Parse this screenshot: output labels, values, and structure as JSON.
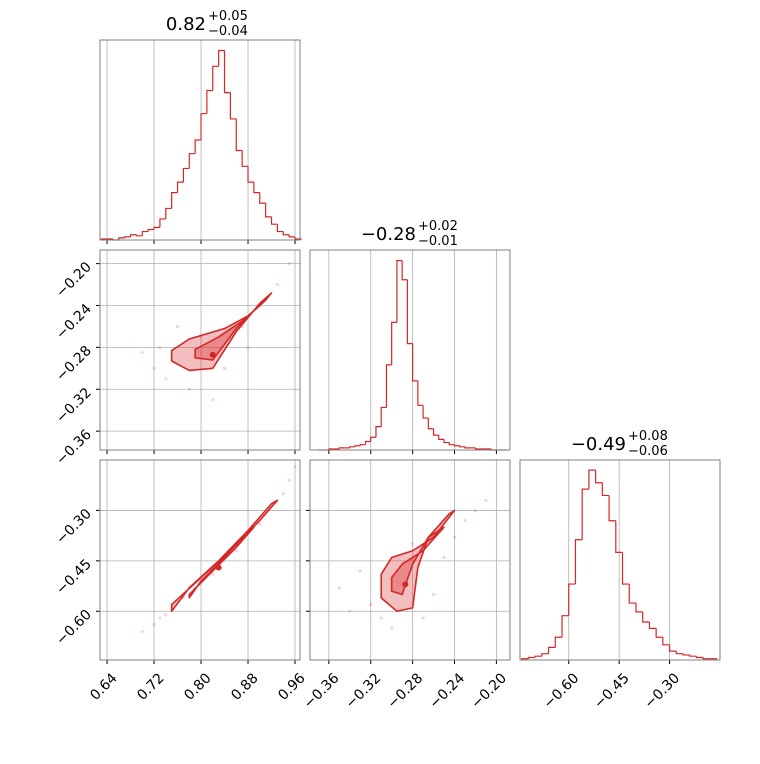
{
  "chart_data": {
    "type": "corner",
    "color": "#d62728",
    "grid": true,
    "params": [
      {
        "title": "0.82",
        "plus": "+0.05",
        "minus": "−0.04",
        "lim": [
          0.628,
          0.9685
        ],
        "ticks": [
          0.64,
          0.72,
          {
            "value": 0.8,
            "label": "0.80"
          },
          0.88,
          0.96
        ],
        "hist": {
          "bins": [
            0.63,
            0.64,
            0.65,
            0.66,
            0.67,
            0.68,
            0.69,
            0.7,
            0.71,
            0.72,
            0.73,
            0.74,
            0.75,
            0.76,
            0.77,
            0.78,
            0.79,
            0.8,
            0.81,
            0.82,
            0.83,
            0.84,
            0.85,
            0.86,
            0.87,
            0.88,
            0.89,
            0.9,
            0.91,
            0.92,
            0.93,
            0.94,
            0.95,
            0.96,
            0.97
          ],
          "values": [
            1,
            1,
            0,
            2,
            3,
            5,
            4,
            8,
            10,
            12,
            20,
            30,
            45,
            55,
            68,
            82,
            95,
            120,
            142,
            165,
            180,
            140,
            115,
            85,
            70,
            55,
            45,
            35,
            22,
            15,
            8,
            5,
            3,
            1
          ],
          "ylim": [
            0,
            190
          ]
        }
      },
      {
        "title": "−0.28",
        "plus": "+0.02",
        "minus": "−0.01",
        "lim": [
          -0.378,
          -0.187
        ],
        "ticks": [
          {
            "value": -0.36,
            "label": "−0.36"
          },
          {
            "value": -0.32,
            "label": "−0.32"
          },
          {
            "value": -0.28,
            "label": "−0.28"
          },
          {
            "value": -0.24,
            "label": "−0.24"
          },
          {
            "value": -0.2,
            "label": "−0.20"
          }
        ],
        "hist": {
          "bins": [
            -0.37,
            -0.365,
            -0.36,
            -0.355,
            -0.35,
            -0.345,
            -0.34,
            -0.335,
            -0.33,
            -0.325,
            -0.32,
            -0.315,
            -0.31,
            -0.305,
            -0.3,
            -0.295,
            -0.29,
            -0.285,
            -0.28,
            -0.275,
            -0.27,
            -0.265,
            -0.26,
            -0.255,
            -0.25,
            -0.245,
            -0.24,
            -0.235,
            -0.23,
            -0.225,
            -0.22,
            -0.215,
            -0.21,
            -0.205,
            -0.2,
            -0.195,
            -0.19
          ],
          "values": [
            0,
            0,
            1,
            1,
            2,
            2,
            3,
            4,
            5,
            8,
            12,
            22,
            40,
            80,
            120,
            178,
            160,
            100,
            65,
            42,
            30,
            20,
            14,
            10,
            7,
            5,
            4,
            3,
            2,
            2,
            1,
            1,
            1,
            0,
            0,
            0
          ],
          "ylim": [
            0,
            188
          ]
        }
      },
      {
        "title": "−0.49",
        "plus": "+0.08",
        "minus": "−0.06",
        "lim": [
          -0.745,
          -0.15
        ],
        "ticks": [
          {
            "value": -0.6,
            "label": "−0.60"
          },
          {
            "value": -0.45,
            "label": "−0.45"
          },
          {
            "value": -0.3,
            "label": "−0.30"
          }
        ],
        "hist": {
          "bins": [
            -0.74,
            -0.72,
            -0.7,
            -0.68,
            -0.66,
            -0.64,
            -0.62,
            -0.6,
            -0.58,
            -0.56,
            -0.54,
            -0.52,
            -0.5,
            -0.48,
            -0.46,
            -0.44,
            -0.42,
            -0.4,
            -0.38,
            -0.36,
            -0.34,
            -0.32,
            -0.3,
            -0.28,
            -0.26,
            -0.24,
            -0.22,
            -0.2,
            -0.18,
            -0.16
          ],
          "values": [
            1,
            2,
            3,
            5,
            10,
            18,
            35,
            60,
            95,
            135,
            150,
            140,
            130,
            110,
            85,
            60,
            45,
            38,
            30,
            25,
            18,
            12,
            7,
            5,
            4,
            3,
            2,
            1,
            1
          ],
          "ylim": [
            0,
            158
          ]
        }
      }
    ],
    "pairs": [
      {
        "points": {
          "x": [
            0.7,
            0.72,
            0.74,
            0.78,
            0.8,
            0.84,
            0.87,
            0.9,
            0.93,
            0.95,
            0.76,
            0.82,
            0.73,
            0.88
          ],
          "y": [
            -0.285,
            -0.3,
            -0.31,
            -0.32,
            -0.27,
            -0.3,
            -0.26,
            -0.24,
            -0.22,
            -0.2,
            -0.26,
            -0.33,
            -0.28,
            -0.28
          ]
        },
        "contours": [
          {
            "x": [
              0.75,
              0.78,
              0.84,
              0.88,
              0.91,
              0.92,
              0.9,
              0.86,
              0.82,
              0.78,
              0.75
            ],
            "y": [
              -0.283,
              -0.272,
              -0.262,
              -0.25,
              -0.235,
              -0.228,
              -0.238,
              -0.265,
              -0.3,
              -0.302,
              -0.293
            ]
          },
          {
            "x": [
              0.79,
              0.83,
              0.87,
              0.89,
              0.86,
              0.82,
              0.79
            ],
            "y": [
              -0.282,
              -0.27,
              -0.255,
              -0.245,
              -0.262,
              -0.292,
              -0.29
            ]
          }
        ],
        "peak": {
          "x": 0.82,
          "y": -0.287
        }
      },
      {
        "points": {
          "x": [
            0.7,
            0.72,
            0.74,
            0.77,
            0.82,
            0.86,
            0.9,
            0.94,
            0.95,
            0.96,
            0.73,
            0.79
          ],
          "y": [
            -0.66,
            -0.64,
            -0.61,
            -0.56,
            -0.49,
            -0.42,
            -0.34,
            -0.25,
            -0.21,
            -0.17,
            -0.62,
            -0.53
          ]
        },
        "contours": [
          {
            "x": [
              0.75,
              0.8,
              0.85,
              0.9,
              0.93,
              0.92,
              0.88,
              0.83,
              0.78,
              0.75
            ],
            "y": [
              -0.58,
              -0.5,
              -0.42,
              -0.33,
              -0.27,
              -0.28,
              -0.36,
              -0.45,
              -0.53,
              -0.6
            ]
          },
          {
            "x": [
              0.78,
              0.82,
              0.86,
              0.89,
              0.88,
              0.84,
              0.8,
              0.78
            ],
            "y": [
              -0.55,
              -0.48,
              -0.41,
              -0.35,
              -0.36,
              -0.44,
              -0.51,
              -0.56
            ]
          }
        ],
        "peak": {
          "x": 0.83,
          "y": -0.47
        }
      },
      {
        "points": {
          "x": [
            -0.35,
            -0.33,
            -0.32,
            -0.31,
            -0.27,
            -0.26,
            -0.25,
            -0.23,
            -0.22,
            -0.21,
            -0.3,
            -0.28,
            -0.34,
            -0.24
          ],
          "y": [
            -0.53,
            -0.48,
            -0.58,
            -0.62,
            -0.62,
            -0.55,
            -0.44,
            -0.33,
            -0.3,
            -0.27,
            -0.65,
            -0.4,
            -0.6,
            -0.38
          ]
        },
        "contours": [
          {
            "x": [
              -0.31,
              -0.3,
              -0.28,
              -0.26,
              -0.24,
              -0.245,
              -0.265,
              -0.275,
              -0.28,
              -0.295,
              -0.31
            ],
            "y": [
              -0.49,
              -0.44,
              -0.42,
              -0.38,
              -0.3,
              -0.31,
              -0.38,
              -0.47,
              -0.59,
              -0.6,
              -0.56
            ]
          },
          {
            "x": [
              -0.3,
              -0.29,
              -0.27,
              -0.25,
              -0.265,
              -0.28,
              -0.29,
              -0.3
            ],
            "y": [
              -0.5,
              -0.46,
              -0.42,
              -0.35,
              -0.38,
              -0.46,
              -0.55,
              -0.54
            ]
          }
        ],
        "peak": {
          "x": -0.287,
          "y": -0.52
        }
      }
    ]
  }
}
